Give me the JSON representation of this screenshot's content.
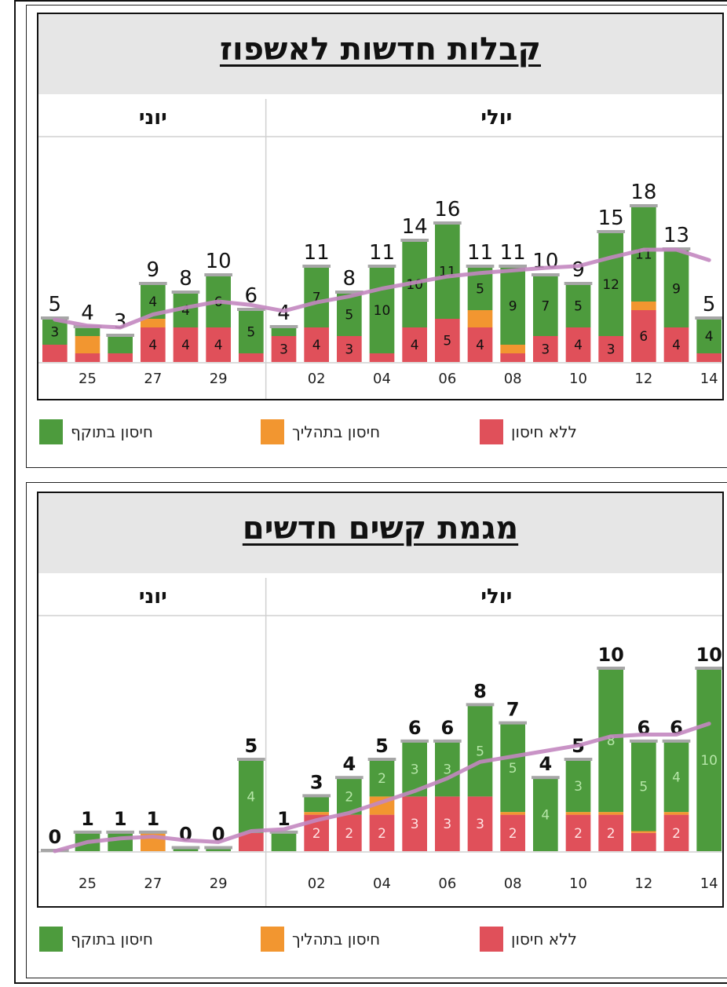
{
  "colors": {
    "valid": "#4d9b3d",
    "pending": "#f29630",
    "none": "#e0505a",
    "avg": "#c387c0",
    "cap": "#a6a6a6",
    "grid": "#d0d0d0",
    "title_bg": "#e6e6e6"
  },
  "legend": [
    {
      "name": "valid",
      "label": "חיסון בתוקף",
      "icon": "green-square"
    },
    {
      "name": "pending",
      "label": "חיסון בתהליך",
      "icon": "orange-square"
    },
    {
      "name": "none",
      "label": "ללא חיסון",
      "icon": "red-square"
    }
  ],
  "chart_data": [
    {
      "type": "bar",
      "stacked": true,
      "title": "קבלות חדשות לאשפוז",
      "months": [
        {
          "label": "יוני",
          "span": [
            0,
            6
          ]
        },
        {
          "label": "יולי",
          "span": [
            7,
            20
          ]
        }
      ],
      "ylim": [
        0,
        20
      ],
      "categories": [
        "24",
        "25",
        "26",
        "27",
        "28",
        "29",
        "30",
        "01",
        "02",
        "03",
        "04",
        "05",
        "06",
        "07",
        "08",
        "09",
        "10",
        "11",
        "12",
        "13",
        "14"
      ],
      "x_tick_labels": [
        "",
        "25",
        "",
        "27",
        "",
        "29",
        "",
        "",
        "02",
        "",
        "04",
        "",
        "06",
        "",
        "08",
        "",
        "10",
        "",
        "12",
        "",
        "14"
      ],
      "series": [
        {
          "name": "ללא חיסון",
          "key": "none",
          "values": [
            2,
            1,
            1,
            4,
            4,
            4,
            1,
            3,
            4,
            3,
            1,
            4,
            5,
            4,
            1,
            3,
            4,
            3,
            6,
            4,
            1
          ],
          "labels": [
            null,
            null,
            null,
            "4",
            "4",
            "4",
            null,
            "3",
            "4",
            "3",
            null,
            "4",
            "5",
            "4",
            null,
            "3",
            "4",
            "3",
            "6",
            "4",
            null
          ]
        },
        {
          "name": "חיסון בתהליך",
          "key": "pending",
          "values": [
            0,
            2,
            0,
            1,
            0,
            0,
            0,
            0,
            0,
            0,
            0,
            0,
            0,
            2,
            1,
            0,
            0,
            0,
            1,
            0,
            0
          ],
          "labels": [
            null,
            null,
            null,
            null,
            null,
            null,
            null,
            null,
            null,
            null,
            null,
            null,
            null,
            null,
            null,
            null,
            null,
            null,
            null,
            null,
            null
          ]
        },
        {
          "name": "חיסון בתוקף",
          "key": "valid",
          "values": [
            3,
            1,
            2,
            4,
            4,
            6,
            5,
            1,
            7,
            5,
            10,
            10,
            11,
            5,
            9,
            7,
            5,
            12,
            11,
            9,
            4
          ],
          "labels": [
            "3",
            null,
            null,
            "4",
            "4",
            "6",
            "5",
            null,
            "7",
            "5",
            "10",
            "10",
            "11",
            "5",
            "9",
            "7",
            "5",
            "12",
            "11",
            "9",
            "4"
          ]
        }
      ],
      "totals": [
        "5",
        "4",
        "3",
        "9",
        "8",
        "10",
        "6",
        "4",
        "11",
        "8",
        "11",
        "14",
        "16",
        "11",
        "11",
        "10",
        "9",
        "15",
        "18",
        "13",
        "5"
      ],
      "moving_average": [
        4.9,
        4.2,
        4.0,
        5.5,
        6.3,
        7.0,
        6.6,
        5.9,
        6.9,
        7.6,
        8.5,
        9.2,
        9.9,
        10.3,
        10.6,
        10.9,
        11.1,
        12.1,
        13.0,
        13.0,
        11.8
      ]
    },
    {
      "type": "bar",
      "stacked": true,
      "title": "מגמת קשים חדשים",
      "months": [
        {
          "label": "יוני",
          "span": [
            0,
            6
          ]
        },
        {
          "label": "יולי",
          "span": [
            7,
            20
          ]
        }
      ],
      "ylim": [
        0,
        10
      ],
      "categories": [
        "24",
        "25",
        "26",
        "27",
        "28",
        "29",
        "30",
        "01",
        "02",
        "03",
        "04",
        "05",
        "06",
        "07",
        "08",
        "09",
        "10",
        "11",
        "12",
        "13",
        "14"
      ],
      "x_tick_labels": [
        "",
        "25",
        "",
        "27",
        "",
        "29",
        "",
        "",
        "02",
        "",
        "04",
        "",
        "06",
        "",
        "08",
        "",
        "10",
        "",
        "12",
        "",
        "14"
      ],
      "series": [
        {
          "name": "ללא חיסון",
          "key": "none",
          "values": [
            0,
            0,
            0,
            0,
            0,
            0,
            1,
            0,
            2,
            2,
            2,
            3,
            3,
            3,
            2,
            0,
            2,
            2,
            1,
            2,
            0
          ],
          "labels": [
            null,
            null,
            null,
            null,
            null,
            null,
            null,
            null,
            "2",
            "2",
            "2",
            "3",
            "3",
            "3",
            "2",
            null,
            "2",
            "2",
            null,
            "2",
            null
          ]
        },
        {
          "name": "חיסון בתהליך",
          "key": "pending",
          "values": [
            0,
            0,
            0,
            1,
            0,
            0,
            0,
            0,
            0.15,
            0,
            1,
            0,
            0,
            0,
            0.15,
            0,
            0.15,
            0.15,
            0.1,
            0.15,
            0
          ],
          "labels": [
            null,
            null,
            null,
            null,
            null,
            null,
            null,
            null,
            null,
            null,
            null,
            null,
            null,
            null,
            null,
            null,
            null,
            null,
            null,
            null,
            null
          ]
        },
        {
          "name": "חיסון בתוקף",
          "key": "valid",
          "values": [
            0,
            1,
            1,
            0,
            0.15,
            0.15,
            4,
            1,
            0.85,
            2,
            2,
            3,
            3,
            5,
            4.85,
            4,
            2.85,
            7.85,
            4.9,
            3.85,
            10
          ],
          "labels": [
            null,
            null,
            null,
            null,
            null,
            null,
            "4",
            null,
            null,
            "2",
            "2",
            "3",
            "3",
            "5",
            "5",
            "4",
            "3",
            "8",
            "5",
            "4",
            "10"
          ]
        }
      ],
      "totals": [
        "0",
        "1",
        "1",
        "1",
        "0",
        "0",
        "5",
        "1",
        "3",
        "4",
        "5",
        "6",
        "6",
        "8",
        "7",
        "4",
        "5",
        "10",
        "6",
        "6",
        "10"
      ],
      "moving_average": [
        0.0,
        0.5,
        0.7,
        0.8,
        0.6,
        0.5,
        1.1,
        1.2,
        1.7,
        2.1,
        2.7,
        3.3,
        4.0,
        4.9,
        5.2,
        5.5,
        5.8,
        6.3,
        6.4,
        6.4,
        7.0
      ]
    }
  ]
}
